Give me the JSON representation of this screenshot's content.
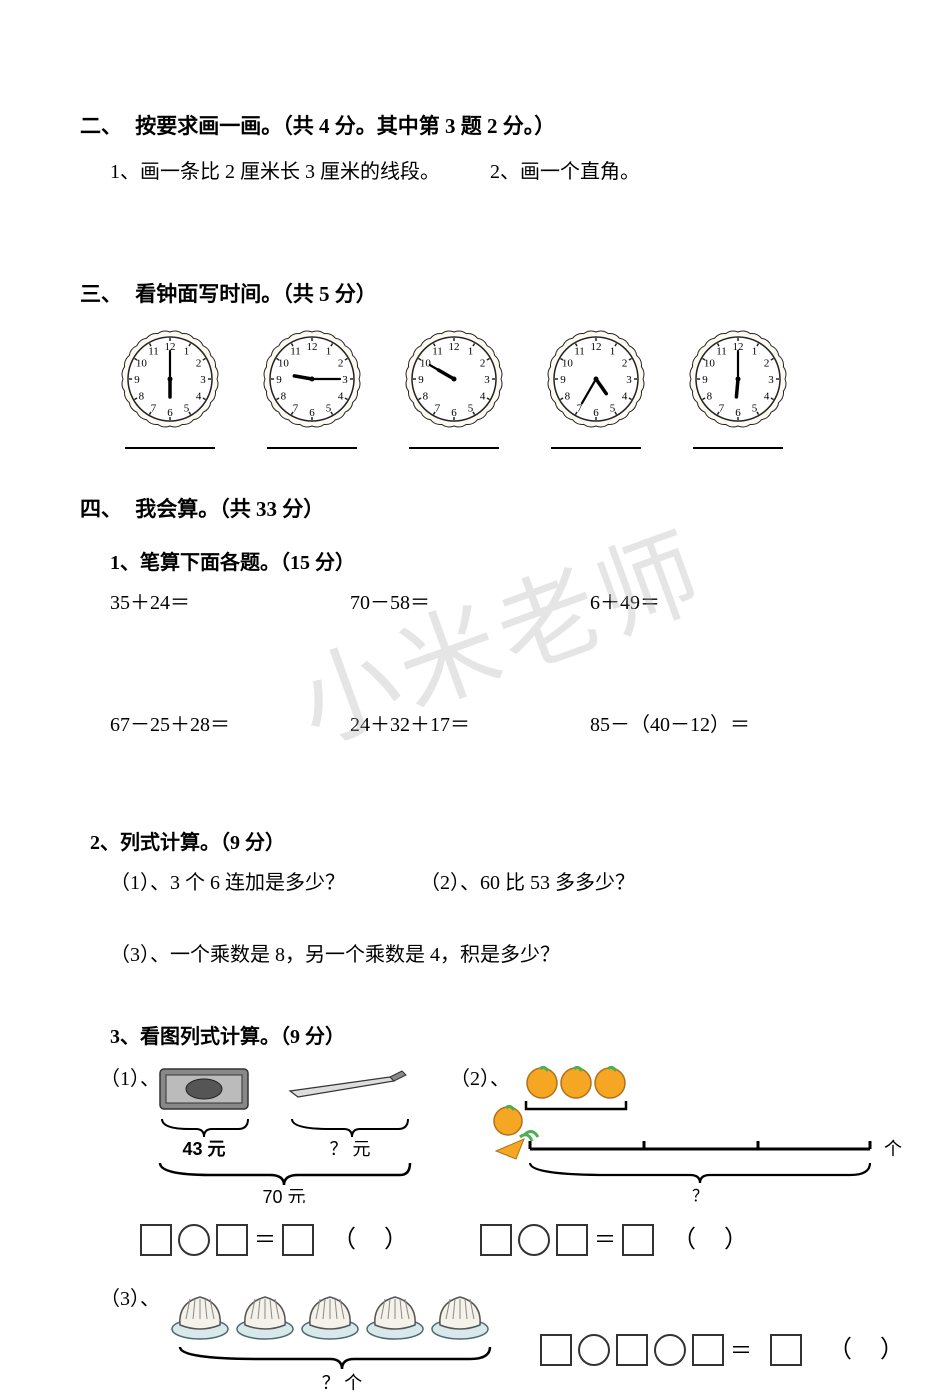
{
  "section2": {
    "heading_num": "二、",
    "heading_text": "按要求画一画。（共 4 分。其中第 3 题 2 分。）",
    "q1": "1、画一条比 2 厘米长 3 厘米的线段。",
    "q2": "2、画一个直角。"
  },
  "section3": {
    "heading_num": "三、",
    "heading_text": "看钟面写时间。（共 5 分）",
    "clocks": [
      {
        "hour_angle": 180,
        "minute_angle": 0
      },
      {
        "hour_angle": 280,
        "minute_angle": 90
      },
      {
        "hour_angle": 300,
        "minute_angle": 300
      },
      {
        "hour_angle": 145,
        "minute_angle": 210
      },
      {
        "hour_angle": 185,
        "minute_angle": 0
      }
    ],
    "clock_face_color": "#fdfaf2",
    "clock_border_color": "#222222"
  },
  "section4": {
    "heading_num": "四、",
    "heading_text": "我会算。（共 33 分）",
    "sub1": {
      "title": "1、笔算下面各题。（15 分）",
      "row1": [
        "35＋24＝",
        "70－58＝",
        "6＋49＝"
      ],
      "row2": [
        "67－25＋28＝",
        "24＋32＋17＝",
        "85－（40－12）＝"
      ]
    },
    "sub2": {
      "title": "2、列式计算。（9 分）",
      "q1": "（1）、3 个 6 连加是多少？",
      "q2": "（2）、60 比 53 多多少？",
      "q3": "（3）、一个乘数是 8，另一个乘数是 4，积是多少？"
    },
    "sub3": {
      "title": "3、看图列式计算。（9 分）",
      "p1": {
        "label": "（1）、",
        "price1": "43 元",
        "price2": "？ 元",
        "total": "70 元"
      },
      "p2": {
        "label": "（2）、",
        "unit": "个",
        "qmark": "？"
      },
      "p3": {
        "label": "（3）、",
        "qtext": "？ 个"
      }
    }
  },
  "watermark_text": "小米老师",
  "style": {
    "background_color": "#ffffff",
    "text_color": "#000000",
    "watermark_color": "rgba(180,180,180,0.35)",
    "orange_fill": "#f5a623",
    "leaf_fill": "#4caf50",
    "bun_fill": "#f5f2ea",
    "stove_fill": "#888888"
  }
}
